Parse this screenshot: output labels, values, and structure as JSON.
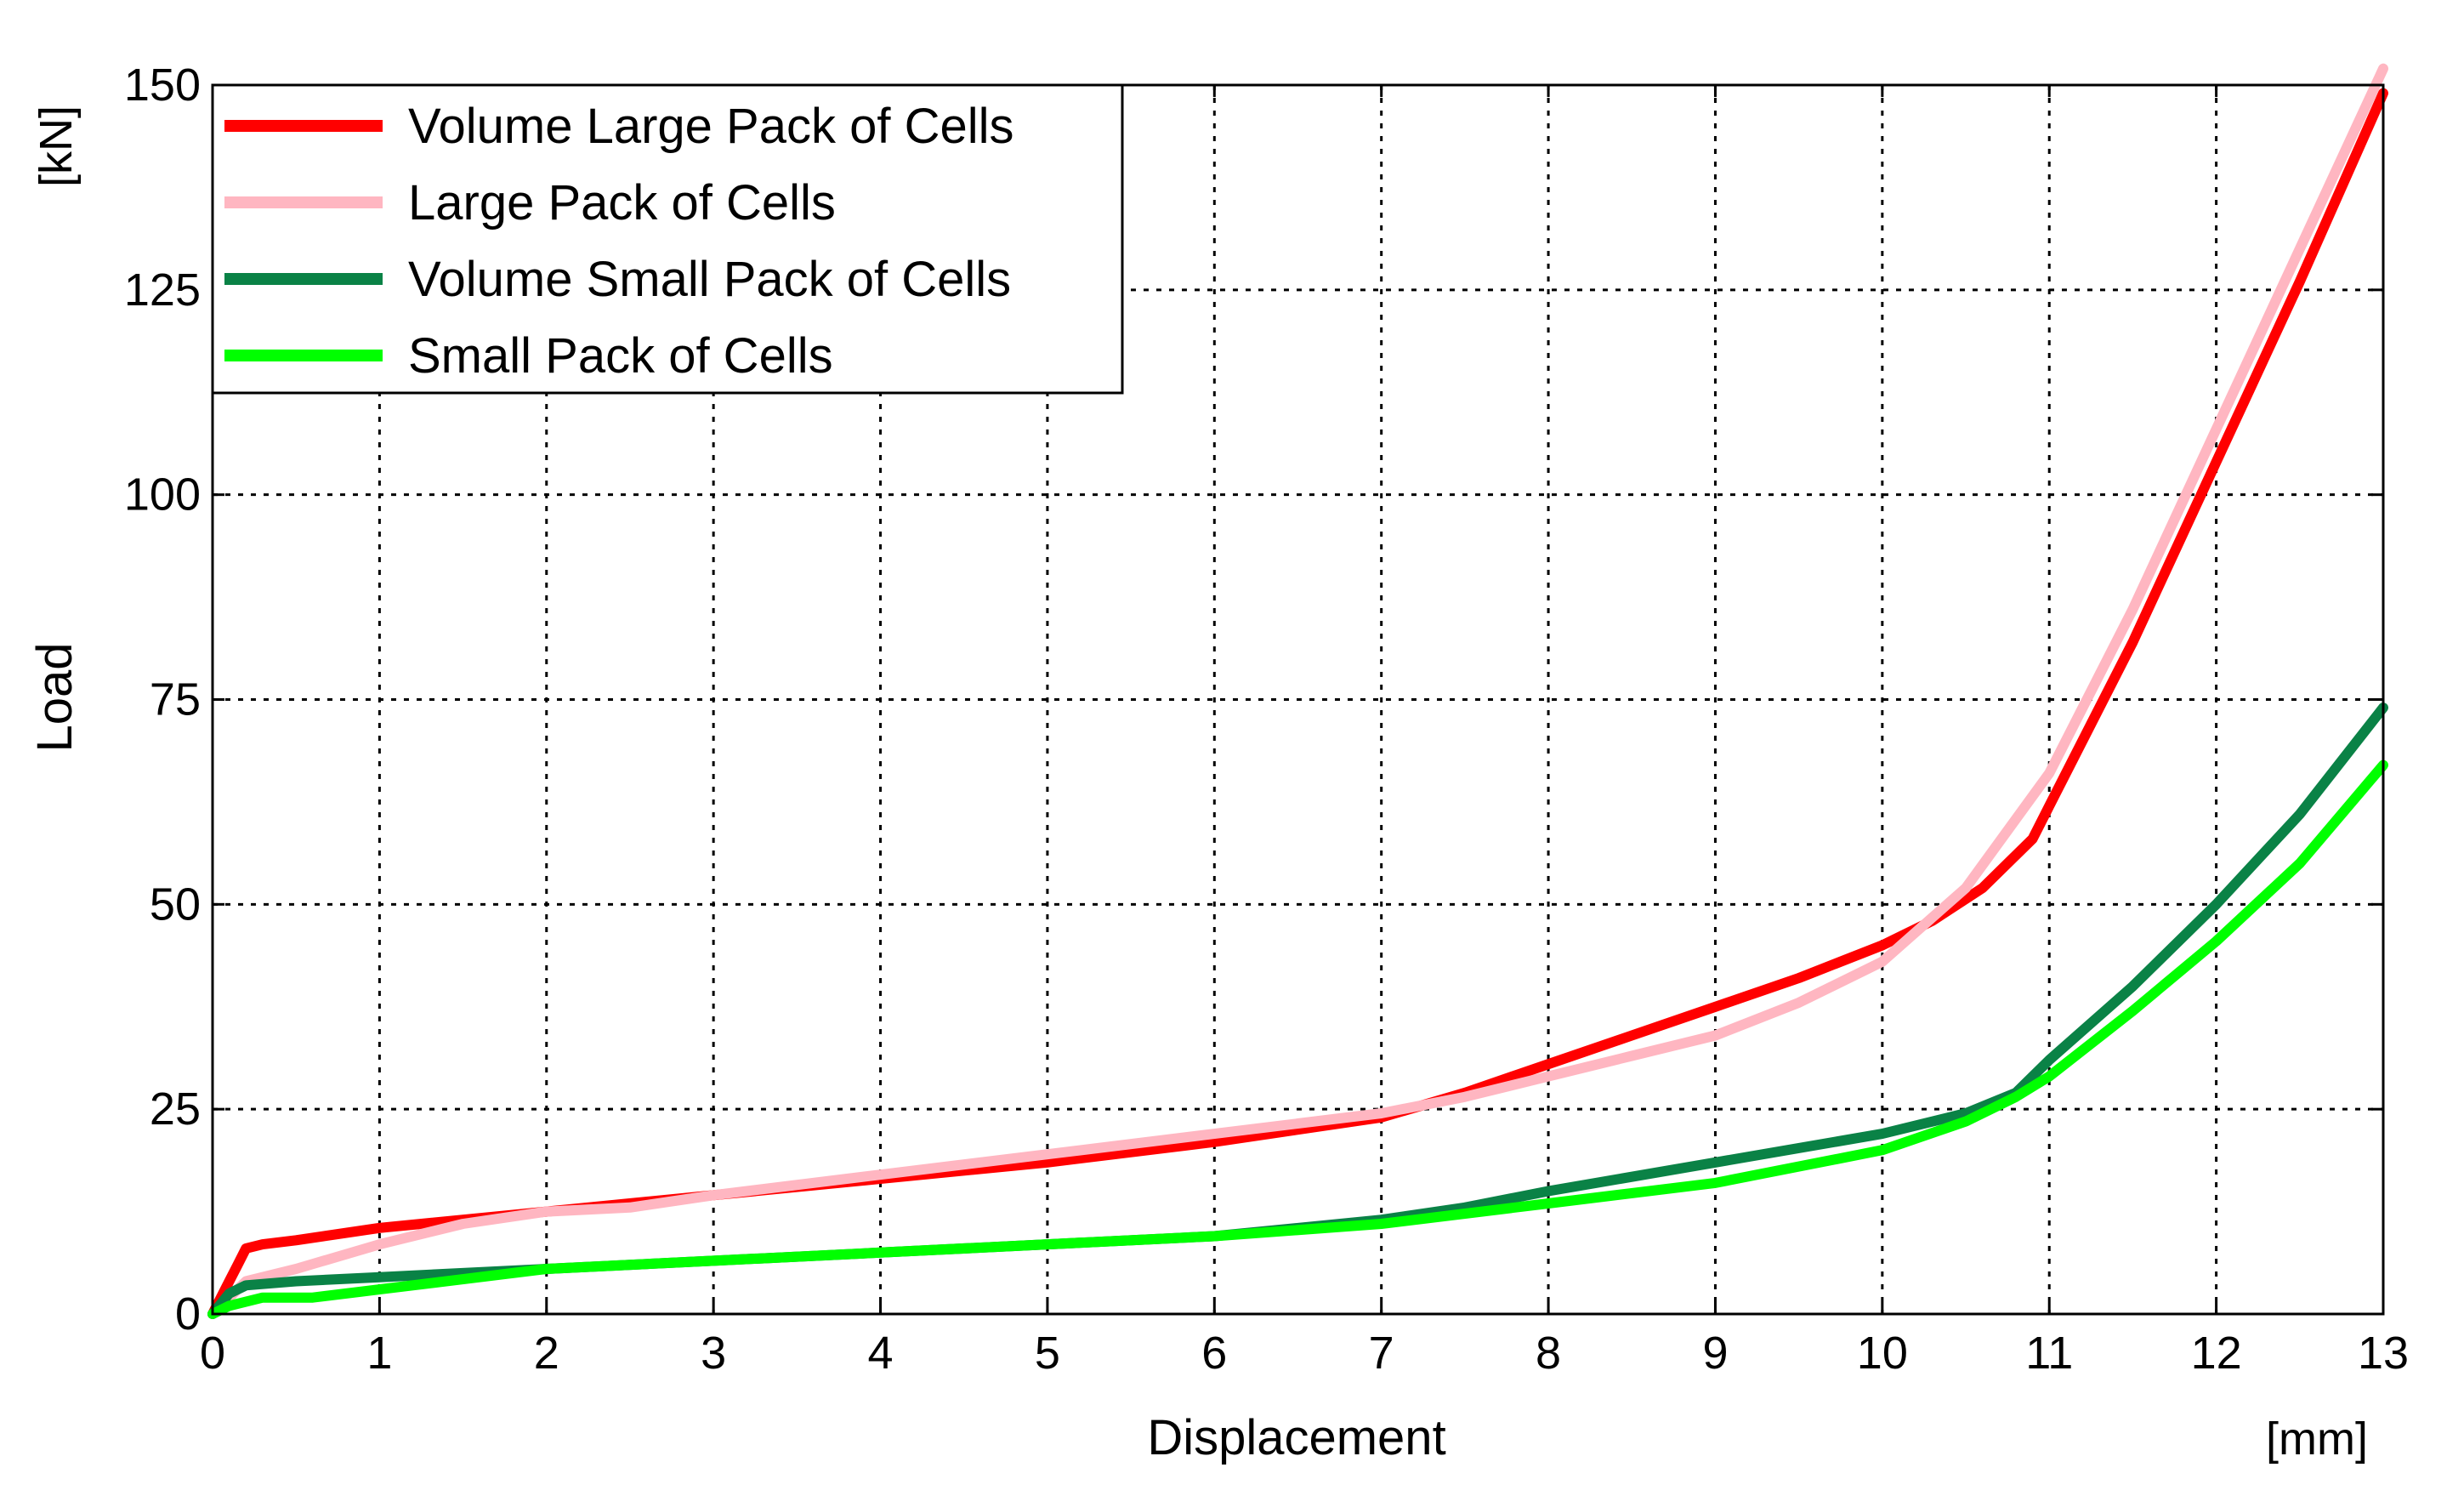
{
  "chart_data": {
    "type": "line",
    "title": "",
    "xlabel": "Displacement",
    "xunit": "[mm]",
    "ylabel": "Load",
    "yunit": "[kN]",
    "xlim": [
      0,
      13
    ],
    "ylim": [
      0,
      150
    ],
    "xticks": [
      0,
      1,
      2,
      3,
      4,
      5,
      6,
      7,
      8,
      9,
      10,
      11,
      12,
      13
    ],
    "yticks": [
      0,
      25,
      50,
      75,
      100,
      125,
      150
    ],
    "grid": true,
    "legend_position": "top-left",
    "series": [
      {
        "name": "Volume Large Pack of Cells",
        "color": "#ff0000",
        "x": [
          0,
          0.05,
          0.1,
          0.15,
          0.2,
          0.3,
          0.5,
          1,
          2,
          3,
          4,
          5,
          6,
          7,
          7.5,
          8,
          8.5,
          9,
          9.5,
          10,
          10.3,
          10.6,
          10.9,
          11,
          11.5,
          12,
          12.5,
          13
        ],
        "values": [
          0,
          2,
          4,
          6,
          8,
          8.5,
          9,
          10.5,
          12.5,
          14.5,
          16.5,
          18.5,
          21,
          24,
          27,
          30.5,
          34,
          37.5,
          41,
          45,
          48,
          52,
          58,
          62,
          82,
          104,
          126,
          149
        ]
      },
      {
        "name": "Large Pack of Cells",
        "color": "#ffb6c1",
        "x": [
          0,
          0.1,
          0.2,
          0.5,
          1,
          1.5,
          2,
          2.5,
          3,
          4,
          5,
          6,
          7,
          7.5,
          8,
          8.5,
          9,
          9.5,
          10,
          10.5,
          11,
          11.5,
          12,
          12.5,
          13
        ],
        "values": [
          0,
          2,
          4,
          5.5,
          8.5,
          11,
          12.5,
          13,
          14.5,
          17,
          19.5,
          22,
          24.5,
          26.5,
          29,
          31.5,
          34,
          38,
          43,
          52,
          66,
          86,
          108,
          130,
          152
        ]
      },
      {
        "name": "Volume Small Pack of Cells",
        "color": "#0a8246",
        "x": [
          0,
          0.1,
          0.2,
          0.5,
          1,
          2,
          3,
          4,
          5,
          6,
          7,
          7.5,
          8,
          9,
          10,
          10.5,
          10.8,
          11,
          11.5,
          12,
          12.5,
          13
        ],
        "values": [
          0,
          2.5,
          3.5,
          4,
          4.5,
          5.5,
          6.5,
          7.5,
          8.5,
          9.5,
          11.5,
          13,
          15,
          18.5,
          22,
          24.5,
          27,
          31,
          40,
          50,
          61,
          74
        ]
      },
      {
        "name": "Small Pack of Cells",
        "color": "#00ff00",
        "x": [
          0,
          0.1,
          0.3,
          0.6,
          1,
          2,
          3,
          4,
          5,
          6,
          7,
          8,
          9,
          10,
          10.5,
          10.8,
          11,
          11.5,
          12,
          12.5,
          13
        ],
        "values": [
          0,
          1,
          2,
          2,
          3,
          5.5,
          6.5,
          7.5,
          8.5,
          9.5,
          11,
          13.5,
          16,
          20,
          23.5,
          26.5,
          29,
          37,
          45.5,
          55,
          67
        ]
      }
    ]
  }
}
